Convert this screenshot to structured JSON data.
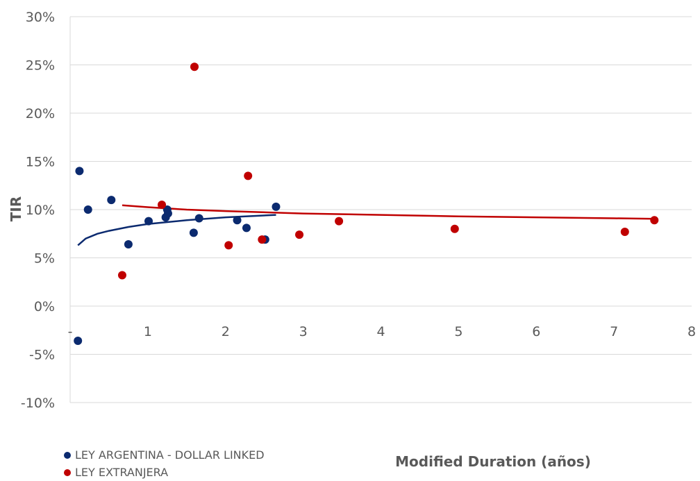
{
  "chart_data": {
    "type": "scatter",
    "title": "",
    "xlabel": "Modified Duration (años)",
    "ylabel": "TIR",
    "xlim": [
      0,
      8
    ],
    "ylim": [
      -10,
      30
    ],
    "x_ticks": [
      {
        "value": 0,
        "label": "-"
      },
      {
        "value": 1,
        "label": "1"
      },
      {
        "value": 2,
        "label": "2"
      },
      {
        "value": 3,
        "label": "3"
      },
      {
        "value": 4,
        "label": "4"
      },
      {
        "value": 5,
        "label": "5"
      },
      {
        "value": 6,
        "label": "6"
      },
      {
        "value": 7,
        "label": "7"
      },
      {
        "value": 8,
        "label": "8"
      }
    ],
    "y_ticks": [
      {
        "value": 30,
        "label": "30%"
      },
      {
        "value": 25,
        "label": "25%"
      },
      {
        "value": 20,
        "label": "20%"
      },
      {
        "value": 15,
        "label": "15%"
      },
      {
        "value": 10,
        "label": "10%"
      },
      {
        "value": 5,
        "label": "5%"
      },
      {
        "value": 0,
        "label": "0%"
      },
      {
        "value": -5,
        "label": "-5%"
      },
      {
        "value": -10,
        "label": "-10%"
      }
    ],
    "grid": "horizontal",
    "legend_position": "bottom-left",
    "series": [
      {
        "name": "LEY ARGENTINA - DOLLAR LINKED",
        "color": "#0b2a6f",
        "points": [
          {
            "x": 0.12,
            "y": 14.0
          },
          {
            "x": 0.23,
            "y": 10.0
          },
          {
            "x": 0.53,
            "y": 11.0
          },
          {
            "x": 0.75,
            "y": 6.4
          },
          {
            "x": 1.01,
            "y": 8.8
          },
          {
            "x": 1.23,
            "y": 9.2
          },
          {
            "x": 1.25,
            "y": 10.0
          },
          {
            "x": 1.26,
            "y": 9.6
          },
          {
            "x": 1.59,
            "y": 7.6
          },
          {
            "x": 1.66,
            "y": 9.1
          },
          {
            "x": 2.15,
            "y": 8.9
          },
          {
            "x": 2.27,
            "y": 8.1
          },
          {
            "x": 2.51,
            "y": 6.9
          },
          {
            "x": 2.65,
            "y": 10.3
          },
          {
            "x": 0.1,
            "y": -3.6
          }
        ],
        "trend": [
          {
            "x": 0.1,
            "y": 6.3
          },
          {
            "x": 0.2,
            "y": 7.0
          },
          {
            "x": 0.35,
            "y": 7.5
          },
          {
            "x": 0.5,
            "y": 7.8
          },
          {
            "x": 0.75,
            "y": 8.2
          },
          {
            "x": 1.0,
            "y": 8.5
          },
          {
            "x": 1.5,
            "y": 8.9
          },
          {
            "x": 2.0,
            "y": 9.2
          },
          {
            "x": 2.65,
            "y": 9.45
          }
        ]
      },
      {
        "name": "LEY EXTRANJERA",
        "color": "#c00000",
        "points": [
          {
            "x": 0.67,
            "y": 3.2
          },
          {
            "x": 1.18,
            "y": 10.5
          },
          {
            "x": 1.6,
            "y": 24.8
          },
          {
            "x": 2.04,
            "y": 6.3
          },
          {
            "x": 2.29,
            "y": 13.5
          },
          {
            "x": 2.47,
            "y": 6.9
          },
          {
            "x": 2.95,
            "y": 7.4
          },
          {
            "x": 3.46,
            "y": 8.8
          },
          {
            "x": 4.95,
            "y": 8.0
          },
          {
            "x": 7.14,
            "y": 7.7
          },
          {
            "x": 7.52,
            "y": 8.9
          }
        ],
        "trend": [
          {
            "x": 0.67,
            "y": 10.45
          },
          {
            "x": 1.0,
            "y": 10.25
          },
          {
            "x": 1.5,
            "y": 10.0
          },
          {
            "x": 2.0,
            "y": 9.85
          },
          {
            "x": 3.0,
            "y": 9.6
          },
          {
            "x": 4.0,
            "y": 9.45
          },
          {
            "x": 5.0,
            "y": 9.3
          },
          {
            "x": 6.0,
            "y": 9.2
          },
          {
            "x": 7.0,
            "y": 9.1
          },
          {
            "x": 7.52,
            "y": 9.05
          }
        ]
      }
    ]
  }
}
